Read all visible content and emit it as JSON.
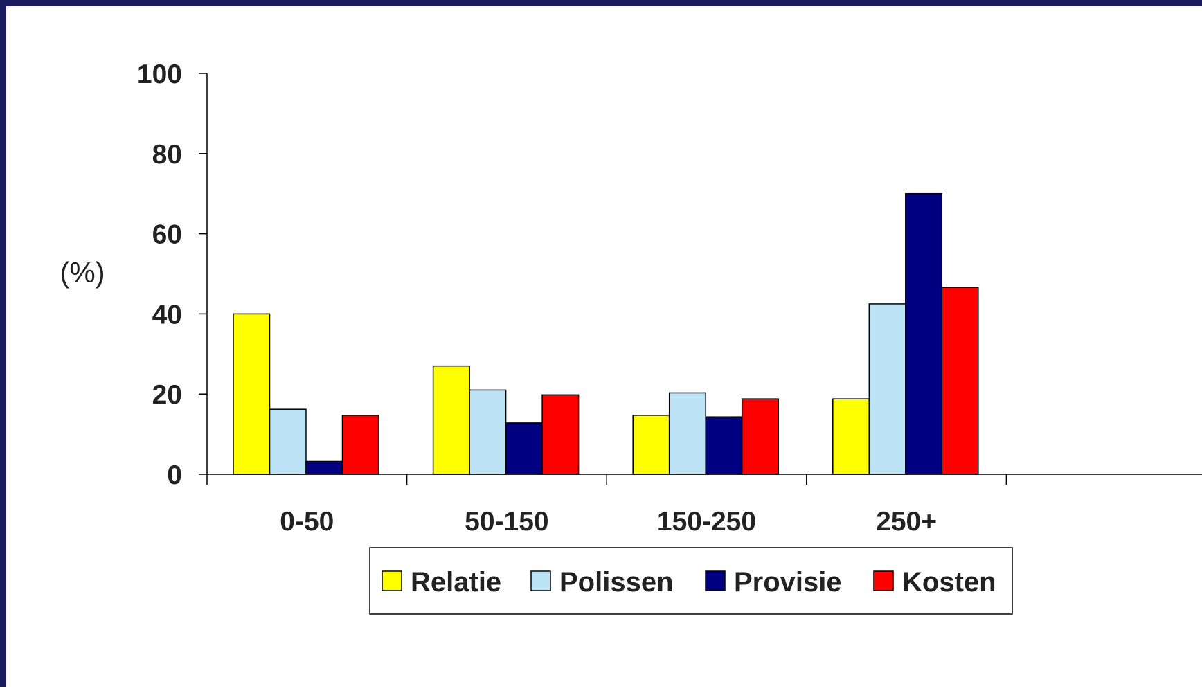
{
  "chart_data": {
    "type": "bar",
    "title": "",
    "xlabel": "",
    "ylabel": "(%)",
    "ylim": [
      0,
      100
    ],
    "yticks": [
      0,
      20,
      40,
      60,
      80,
      100
    ],
    "grid": false,
    "legend_position": "bottom",
    "categories": [
      "0-50",
      "50-150",
      "150-250",
      "250+",
      ""
    ],
    "series": [
      {
        "name": "Relatie",
        "color": "#ffff00",
        "values": [
          40,
          27,
          14.7,
          18.8,
          null
        ]
      },
      {
        "name": "Polissen",
        "color": "#bde3f7",
        "values": [
          16.2,
          21,
          20.3,
          42.5,
          null
        ]
      },
      {
        "name": "Provisie",
        "color": "#000080",
        "values": [
          3.2,
          12.8,
          14.3,
          70,
          null
        ]
      },
      {
        "name": "Kosten",
        "color": "#ff0000",
        "values": [
          14.7,
          19.8,
          18.8,
          46.6,
          null
        ]
      }
    ]
  }
}
